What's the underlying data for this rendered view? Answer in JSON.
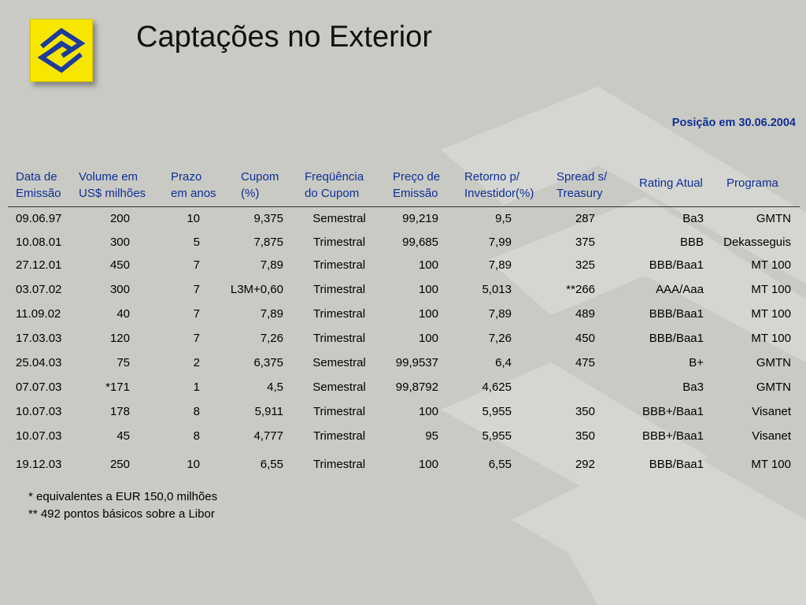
{
  "slide": {
    "title": "Captações no Exterior",
    "position_note": "Posição em 30.06.2004"
  },
  "table": {
    "headers": [
      [
        "Data de",
        "Emissão"
      ],
      [
        "Volume em",
        "US$ milhões"
      ],
      [
        "Prazo",
        "em anos"
      ],
      [
        "Cupom",
        "(%)"
      ],
      [
        "Freqüência",
        "do Cupom"
      ],
      [
        "Preço de",
        "Emissão"
      ],
      [
        "Retorno p/",
        "Investidor(%)"
      ],
      [
        "Spread s/",
        "Treasury"
      ],
      [
        "Rating Atual"
      ],
      [
        "Programa"
      ]
    ],
    "rows": [
      [
        "09.06.97",
        "200",
        "10",
        "9,375",
        "Semestral",
        "99,219",
        "9,5",
        "287",
        "Ba3",
        "GMTN"
      ],
      [
        "10.08.01",
        "300",
        "5",
        "7,875",
        "Trimestral",
        "99,685",
        "7,99",
        "375",
        "BBB",
        "Dekasseguis"
      ],
      [
        "27.12.01",
        "450",
        "7",
        "7,89",
        "Trimestral",
        "100",
        "7,89",
        "325",
        "BBB/Baa1",
        "MT 100"
      ],
      [
        "03.07.02",
        "300",
        "7",
        "L3M+0,60",
        "Trimestral",
        "100",
        "5,013",
        "**266",
        "AAA/Aaa",
        "MT 100"
      ],
      [
        "11.09.02",
        "40",
        "7",
        "7,89",
        "Trimestral",
        "100",
        "7,89",
        "489",
        "BBB/Baa1",
        "MT 100"
      ],
      [
        "17.03.03",
        "120",
        "7",
        "7,26",
        "Trimestral",
        "100",
        "7,26",
        "450",
        "BBB/Baa1",
        "MT 100"
      ],
      [
        "25.04.03",
        "75",
        "2",
        "6,375",
        "Semestral",
        "99,9537",
        "6,4",
        "475",
        "B+",
        "GMTN"
      ],
      [
        "07.07.03",
        "*171",
        "1",
        "4,5",
        "Semestral",
        "99,8792",
        "4,625",
        "",
        "Ba3",
        "GMTN"
      ],
      [
        "10.07.03",
        "178",
        "8",
        "5,911",
        "Trimestral",
        "100",
        "5,955",
        "350",
        "BBB+/Baa1",
        "Visanet"
      ],
      [
        "10.07.03",
        "45",
        "8",
        "4,777",
        "Trimestral",
        "95",
        "5,955",
        "350",
        "BBB+/Baa1",
        "Visanet"
      ],
      [
        "19.12.03",
        "250",
        "10",
        "6,55",
        "Trimestral",
        "100",
        "6,55",
        "292",
        "BBB/Baa1",
        "MT 100"
      ]
    ]
  },
  "footnotes": [
    "*  equivalentes a EUR 150,0 milhões",
    "** 492 pontos básicos sobre a Libor"
  ],
  "colors": {
    "background": "#c9cac4",
    "header_text": "#0f2f96",
    "logo_yellow": "#f7e600",
    "logo_blue": "#1d3a9c"
  },
  "icons": {
    "logo": "banco-do-brasil-logo"
  }
}
